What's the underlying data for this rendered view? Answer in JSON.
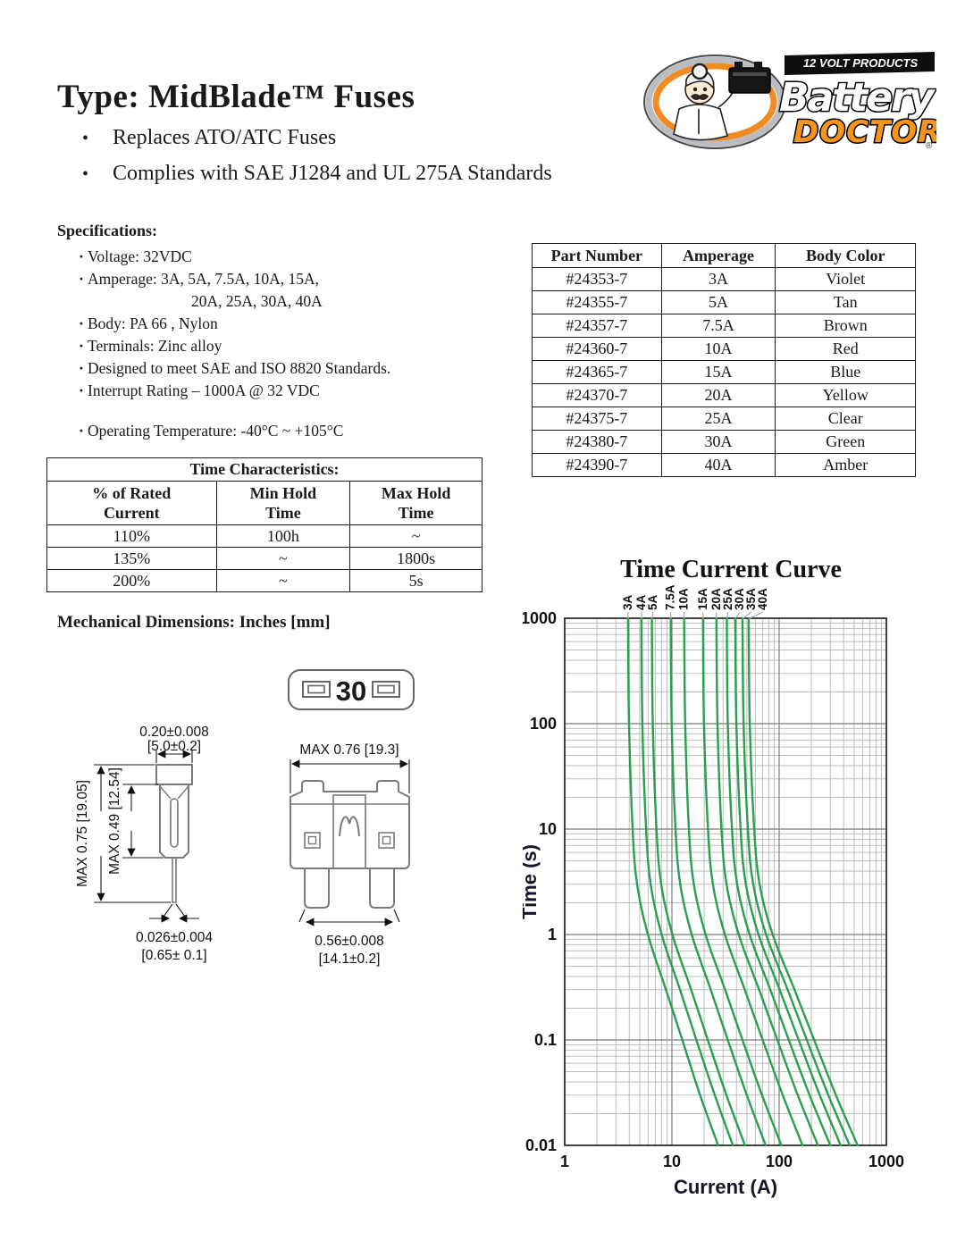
{
  "page": {
    "title": "Type: MidBlade™ Fuses",
    "bullets": [
      "Replaces ATO/ATC Fuses",
      "Complies with SAE J1284 and UL 275A Standards"
    ]
  },
  "logo": {
    "tagline": "12 VOLT PRODUCTS",
    "brand_top": "Battery",
    "brand_bottom": "DOCTOR",
    "registered_mark": "®",
    "orange": "#f7941d",
    "black": "#111111"
  },
  "specifications": {
    "heading": "Specifications:",
    "lines": [
      "Voltage: 32VDC",
      "Amperage: 3A, 5A, 7.5A, 10A, 15A,",
      "20A, 25A, 30A, 40A",
      "Body: PA 66 , Nylon",
      "Terminals: Zinc alloy",
      "Designed to meet SAE and ISO 8820 Standards.",
      "Interrupt Rating – 1000A @ 32 VDC",
      "Operating Temperature: -40°C  ~  +105°C"
    ]
  },
  "part_table": {
    "headers": [
      "Part Number",
      "Amperage",
      "Body Color"
    ],
    "rows": [
      [
        "#24353-7",
        "3A",
        "Violet"
      ],
      [
        "#24355-7",
        "5A",
        "Tan"
      ],
      [
        "#24357-7",
        "7.5A",
        "Brown"
      ],
      [
        "#24360-7",
        "10A",
        "Red"
      ],
      [
        "#24365-7",
        "15A",
        "Blue"
      ],
      [
        "#24370-7",
        "20A",
        "Yellow"
      ],
      [
        "#24375-7",
        "25A",
        "Clear"
      ],
      [
        "#24380-7",
        "30A",
        "Green"
      ],
      [
        "#24390-7",
        "40A",
        "Amber"
      ]
    ]
  },
  "time_table": {
    "title": "Time Characteristics:",
    "headers": [
      "% of Rated Current",
      "Min Hold Time",
      "Max Hold Time"
    ],
    "rows": [
      [
        "110%",
        "100h",
        "~"
      ],
      [
        "135%",
        "~",
        "1800s"
      ],
      [
        "200%",
        "~",
        "5s"
      ]
    ]
  },
  "mechanical": {
    "heading": "Mechanical Dimensions:  Inches [mm]",
    "top_view_label": "30",
    "dims": {
      "blade_width": "0.20±0.008",
      "blade_width_mm": "[5.0±0.2]",
      "body_height": "MAX  0.49 [12.54]",
      "total_height": "MAX  0.75 [19.05]",
      "blade_thickness": "0.026±0.004",
      "blade_thickness_mm": "[0.65± 0.1]",
      "overall_width": "MAX  0.76 [19.3]",
      "terminal_span": "0.56±0.008",
      "terminal_span_mm": "[14.1±0.2]"
    }
  },
  "chart_data": {
    "type": "line",
    "title": "Time Current Curve",
    "xlabel": "Current (A)",
    "ylabel": "Time (s)",
    "x_scale": "log",
    "y_scale": "log",
    "xlim": [
      1,
      1000
    ],
    "ylim": [
      0.01,
      1000
    ],
    "x_ticks": [
      "1",
      "10",
      "100",
      "1000"
    ],
    "y_ticks": [
      "1000",
      "100",
      "10",
      "1",
      "0.1",
      "0.01"
    ],
    "grid": true,
    "legend_position": "labels-above-curves",
    "line_color": "#2aa04e",
    "series": [
      {
        "name": "3A",
        "points": [
          [
            3.9,
            1000
          ],
          [
            3.98,
            100
          ],
          [
            4.3,
            10
          ],
          [
            4.73,
            3
          ],
          [
            5.97,
            1
          ],
          [
            8.79,
            0.3
          ],
          [
            12.5,
            0.1
          ],
          [
            18.3,
            0.03
          ],
          [
            27,
            0.01
          ]
        ]
      },
      {
        "name": "4A",
        "points": [
          [
            5.2,
            1000
          ],
          [
            5.3,
            100
          ],
          [
            5.74,
            10
          ],
          [
            6.33,
            3
          ],
          [
            8.02,
            1
          ],
          [
            11.9,
            0.3
          ],
          [
            16.9,
            0.1
          ],
          [
            25.1,
            0.03
          ],
          [
            37,
            0.01
          ]
        ]
      },
      {
        "name": "5A",
        "points": [
          [
            6.5,
            1000
          ],
          [
            6.63,
            100
          ],
          [
            7.18,
            10
          ],
          [
            7.94,
            3
          ],
          [
            10.1,
            1
          ],
          [
            15.1,
            0.3
          ],
          [
            21.6,
            0.1
          ],
          [
            32.2,
            0.03
          ],
          [
            48,
            0.01
          ]
        ]
      },
      {
        "name": "7.5A",
        "points": [
          [
            9.75,
            1000
          ],
          [
            9.95,
            100
          ],
          [
            10.8,
            10
          ],
          [
            11.95,
            3
          ],
          [
            15.3,
            1
          ],
          [
            23,
            0.3
          ],
          [
            33.2,
            0.1
          ],
          [
            49.9,
            0.03
          ],
          [
            75,
            0.01
          ]
        ]
      },
      {
        "name": "10A",
        "points": [
          [
            13,
            1000
          ],
          [
            13.3,
            100
          ],
          [
            14.4,
            10
          ],
          [
            16,
            3
          ],
          [
            20.6,
            1
          ],
          [
            31.3,
            0.3
          ],
          [
            45.5,
            0.1
          ],
          [
            69.2,
            0.03
          ],
          [
            105,
            0.01
          ]
        ]
      },
      {
        "name": "15A",
        "points": [
          [
            19.5,
            1000
          ],
          [
            19.9,
            100
          ],
          [
            21.7,
            10
          ],
          [
            24.1,
            3
          ],
          [
            31.2,
            1
          ],
          [
            47.8,
            0.3
          ],
          [
            70.2,
            0.1
          ],
          [
            108,
            0.03
          ],
          [
            165,
            0.01
          ]
        ]
      },
      {
        "name": "20A",
        "points": [
          [
            26,
            1000
          ],
          [
            26.6,
            100
          ],
          [
            29,
            10
          ],
          [
            32.3,
            3
          ],
          [
            42,
            1
          ],
          [
            65,
            0.3
          ],
          [
            96.2,
            0.1
          ],
          [
            149,
            0.03
          ],
          [
            230,
            0.01
          ]
        ]
      },
      {
        "name": "25A",
        "points": [
          [
            32.5,
            1000
          ],
          [
            33.2,
            100
          ],
          [
            36.3,
            10
          ],
          [
            40.6,
            3
          ],
          [
            53,
            1
          ],
          [
            82.7,
            0.3
          ],
          [
            123,
            0.1
          ],
          [
            192,
            0.03
          ],
          [
            300,
            0.01
          ]
        ]
      },
      {
        "name": "30A",
        "points": [
          [
            39,
            1000
          ],
          [
            39.9,
            100
          ],
          [
            43.7,
            10
          ],
          [
            48.9,
            3
          ],
          [
            64.2,
            1
          ],
          [
            101,
            0.3
          ],
          [
            152,
            0.1
          ],
          [
            239,
            0.03
          ],
          [
            375,
            0.01
          ]
        ]
      },
      {
        "name": "35A",
        "points": [
          [
            45.5,
            1000
          ],
          [
            46.6,
            100
          ],
          [
            51.1,
            10
          ],
          [
            57.3,
            3
          ],
          [
            75.5,
            1
          ],
          [
            120,
            0.3
          ],
          [
            181,
            0.1
          ],
          [
            287,
            0.03
          ],
          [
            455,
            0.01
          ]
        ]
      },
      {
        "name": "40A",
        "points": [
          [
            52,
            1000
          ],
          [
            53.2,
            100
          ],
          [
            58.5,
            10
          ],
          [
            65.7,
            3
          ],
          [
            87,
            1
          ],
          [
            139,
            0.3
          ],
          [
            212,
            0.1
          ],
          [
            338,
            0.03
          ],
          [
            540,
            0.01
          ]
        ]
      }
    ]
  }
}
